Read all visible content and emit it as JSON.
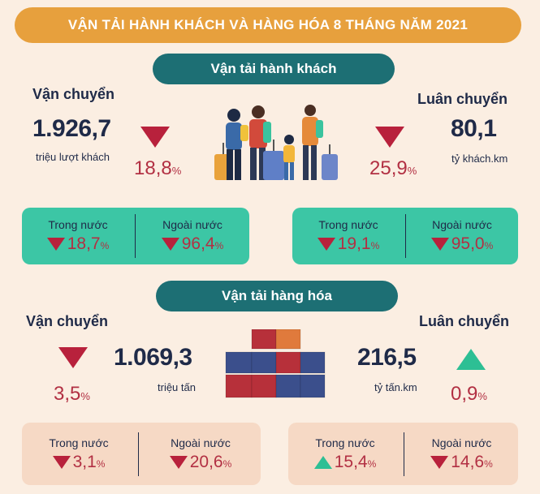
{
  "title": "VẬN TẢI HÀNH KHÁCH VÀ HÀNG HÓA  8 THÁNG NĂM 2021",
  "passenger": {
    "section_title": "Vận tải hành khách",
    "transport_label": "Vận chuyển",
    "transport_value": "1.926,7",
    "transport_unit": "triệu lượt khách",
    "transport_pct": "18,8",
    "transport_trend": "down",
    "turnover_label": "Luân chuyển",
    "turnover_value": "80,1",
    "turnover_unit": "tỷ khách.km",
    "turnover_pct": "25,9",
    "turnover_trend": "down",
    "transport_breakdown": [
      {
        "label": "Trong nước",
        "value": "18,7",
        "trend": "down"
      },
      {
        "label": "Ngoài nước",
        "value": "96,4",
        "trend": "down"
      }
    ],
    "turnover_breakdown": [
      {
        "label": "Trong nước",
        "value": "19,1",
        "trend": "down"
      },
      {
        "label": "Ngoài  nước",
        "value": "95,0",
        "trend": "down"
      }
    ]
  },
  "freight": {
    "section_title": "Vận tải hàng hóa",
    "transport_label": "Vận chuyển",
    "transport_value": "1.069,3",
    "transport_unit": "triệu tấn",
    "transport_pct": "3,5",
    "transport_trend": "down",
    "turnover_label": "Luân chuyển",
    "turnover_value": "216,5",
    "turnover_unit": "tỷ tấn.km",
    "turnover_pct": "0,9",
    "turnover_trend": "up",
    "transport_breakdown": [
      {
        "label": "Trong nước",
        "value": "3,1",
        "trend": "down"
      },
      {
        "label": "Ngoài  nước",
        "value": "20,6",
        "trend": "down"
      }
    ],
    "turnover_breakdown": [
      {
        "label": "Trong nước",
        "value": "15,4",
        "trend": "up"
      },
      {
        "label": "Ngoài  nước",
        "value": "14,6",
        "trend": "down"
      }
    ]
  },
  "percent_sign": "%",
  "colors": {
    "banner": "#e7a03d",
    "section": "#1d6f74",
    "down": "#b8213c",
    "up": "#2dbf94",
    "card_passenger": "#3cc6a5",
    "card_freight": "#f6d9c5"
  },
  "icons": [
    "travelers-illustration",
    "shipping-containers-illustration"
  ]
}
